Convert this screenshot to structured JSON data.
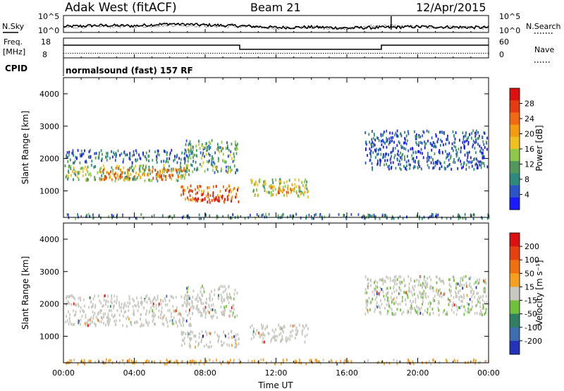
{
  "header": {
    "title": "Adak West (fitACF)",
    "beam": "Beam 21",
    "date": "12/Apr/2015"
  },
  "panels": {
    "noise": {
      "left_label": "N.Sky",
      "right_label": "N.Search",
      "left_ticks": [
        "10^5",
        "10^0"
      ],
      "right_ticks": [
        "10^5",
        "10^0"
      ]
    },
    "freq": {
      "left_label": "Freq.",
      "left_unit": "[MHz]",
      "right_label": "Nave",
      "left_ticks": [
        "18",
        "8"
      ],
      "right_ticks": [
        "60",
        "0"
      ]
    },
    "cpid": {
      "label": "CPID",
      "text": "normalsound (fast) 157 RF"
    }
  },
  "axes": {
    "x_label": "Time UT",
    "x_ticks": [
      "00:00",
      "04:00",
      "08:00",
      "12:00",
      "16:00",
      "20:00",
      "00:00"
    ],
    "y_label": "Slant Range [km]",
    "y_ticks": [
      "1000",
      "2000",
      "3000",
      "4000"
    ]
  },
  "colorbars": {
    "power": {
      "label": "Power [dB]",
      "ticks": [
        "4",
        "8",
        "12",
        "16",
        "20",
        "24",
        "28"
      ],
      "colors": [
        "#1a1aff",
        "#2b55c6",
        "#2f8a7e",
        "#4f9a5a",
        "#8fc94a",
        "#f0c020",
        "#f39c12",
        "#ef6a10",
        "#e63a10",
        "#dd1010"
      ]
    },
    "velocity": {
      "label": "Velocity [m s⁻¹]",
      "ticks": [
        "200",
        "100",
        "50",
        "15",
        "-15",
        "-50",
        "-100",
        "-200"
      ],
      "colors": [
        "#2533b8",
        "#3c6fb0",
        "#2f7f62",
        "#6fc03a",
        "#c8c8c0",
        "#f5a020",
        "#f07010",
        "#e64010",
        "#dd1010"
      ]
    }
  },
  "chart_data": [
    {
      "type": "line",
      "panel": "noise",
      "series": [
        {
          "name": "N.Sky",
          "style": "solid",
          "x": [
            0,
            2,
            4,
            6,
            8,
            10,
            12,
            14,
            16,
            18,
            20,
            22,
            24
          ],
          "values": [
            0.6,
            0.75,
            0.7,
            0.95,
            0.8,
            0.7,
            0.5,
            0.55,
            0.45,
            0.5,
            0.6,
            0.55,
            0.5
          ]
        },
        {
          "name": "N.Search",
          "style": "dotted",
          "x": [
            0,
            2,
            4,
            6,
            8,
            10,
            12,
            14,
            16,
            18,
            20,
            22,
            24
          ],
          "values": [
            0.5,
            0.65,
            0.6,
            0.8,
            0.7,
            0.6,
            0.45,
            0.5,
            0.4,
            0.75,
            0.55,
            0.5,
            0.45
          ]
        }
      ]
    },
    {
      "type": "line",
      "panel": "freq",
      "series": [
        {
          "name": "Freq.",
          "style": "solid",
          "x": [
            0,
            9.95,
            9.95,
            17.95,
            17.95,
            24
          ],
          "values": [
            15.0,
            15.0,
            12.7,
            12.7,
            15.0,
            15.0
          ]
        },
        {
          "name": "Nave",
          "style": "dotted",
          "x": [
            0,
            24
          ],
          "values": [
            14,
            14
          ]
        }
      ]
    },
    {
      "type": "heatmap",
      "parameter": "Power",
      "unit": "dB",
      "x_range_hours": [
        0,
        24
      ],
      "y_range_km": [
        180,
        4500
      ],
      "clim": [
        0,
        30
      ],
      "regions": [
        {
          "t": [
            0.05,
            7.2
          ],
          "r": [
            1350,
            1850
          ],
          "mean": 12
        },
        {
          "t": [
            2.0,
            6.8
          ],
          "r": [
            1380,
            1750
          ],
          "mean": 21
        },
        {
          "t": [
            6.6,
            9.9
          ],
          "r": [
            700,
            1200
          ],
          "mean": 23
        },
        {
          "t": [
            7.4,
            9.4
          ],
          "r": [
            680,
            900
          ],
          "mean": 28
        },
        {
          "t": [
            6.8,
            9.8
          ],
          "r": [
            1600,
            2600
          ],
          "mean": 10
        },
        {
          "t": [
            10.5,
            13.8
          ],
          "r": [
            850,
            1400
          ],
          "mean": 13
        },
        {
          "t": [
            11.6,
            13.4
          ],
          "r": [
            950,
            1200
          ],
          "mean": 19
        },
        {
          "t": [
            0.1,
            7.0
          ],
          "r": [
            1900,
            2300
          ],
          "mean": 6
        },
        {
          "t": [
            17.0,
            23.9
          ],
          "r": [
            1700,
            2900
          ],
          "mean": 5
        },
        {
          "t": [
            0.1,
            24.0
          ],
          "r": [
            180,
            320
          ],
          "mean": 8
        }
      ]
    },
    {
      "type": "heatmap",
      "parameter": "Velocity",
      "unit": "m s-1",
      "x_range_hours": [
        0,
        24
      ],
      "y_range_km": [
        180,
        4500
      ],
      "clim": [
        -200,
        200
      ],
      "regions": [
        {
          "t": [
            0.05,
            7.2
          ],
          "r": [
            1350,
            1850
          ],
          "mean": 0
        },
        {
          "t": [
            6.6,
            9.9
          ],
          "r": [
            700,
            1200
          ],
          "mean": -5
        },
        {
          "t": [
            6.8,
            9.8
          ],
          "r": [
            1600,
            2600
          ],
          "mean": 5
        },
        {
          "t": [
            10.5,
            13.8
          ],
          "r": [
            850,
            1400
          ],
          "mean": 0
        },
        {
          "t": [
            0.1,
            7.0
          ],
          "r": [
            1900,
            2300
          ],
          "mean": 0
        },
        {
          "t": [
            17.0,
            23.9
          ],
          "r": [
            1700,
            2900
          ],
          "mean": 10
        },
        {
          "t": [
            0.1,
            24.0
          ],
          "r": [
            180,
            320
          ],
          "mean": -30
        }
      ]
    }
  ]
}
